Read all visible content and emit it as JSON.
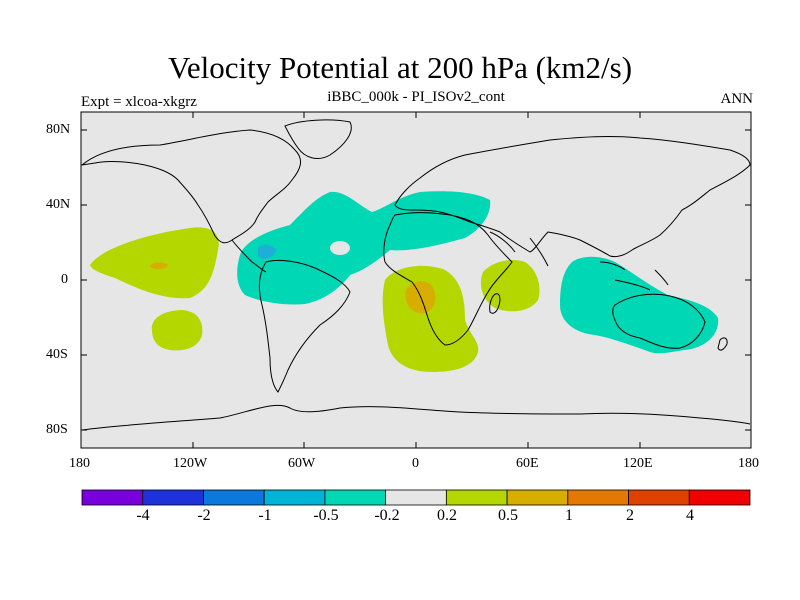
{
  "title": "Velocity Potential at 200 hPa (km2/s)",
  "left_label": "Expt = xlcoa-xkgrz",
  "center_label": "iBBC_000k - PI_ISOv2_cont",
  "right_label": "ANN",
  "y_ticks": [
    "80N",
    "40N",
    "0",
    "40S",
    "80S"
  ],
  "x_ticks": [
    "180",
    "120W",
    "60W",
    "0",
    "60E",
    "120E",
    "180"
  ],
  "colors": {
    "land_bg": "#e6e6e6",
    "neg_light": "#00d7b4",
    "neg_mid": "#1eafd7",
    "pos_light": "#b4d700",
    "pos_mid": "#d7ae00"
  },
  "colorbar": {
    "colors": [
      "#7800dc",
      "#1e32dc",
      "#0a78dc",
      "#00b4d7",
      "#00d7b4",
      "#e6e6e6",
      "#b4d700",
      "#d7ae00",
      "#e57800",
      "#e04000",
      "#f00000"
    ],
    "labels": [
      "-4",
      "-2",
      "-1",
      "-0.5",
      "-0.2",
      "0.2",
      "0.5",
      "1",
      "2",
      "4"
    ]
  }
}
